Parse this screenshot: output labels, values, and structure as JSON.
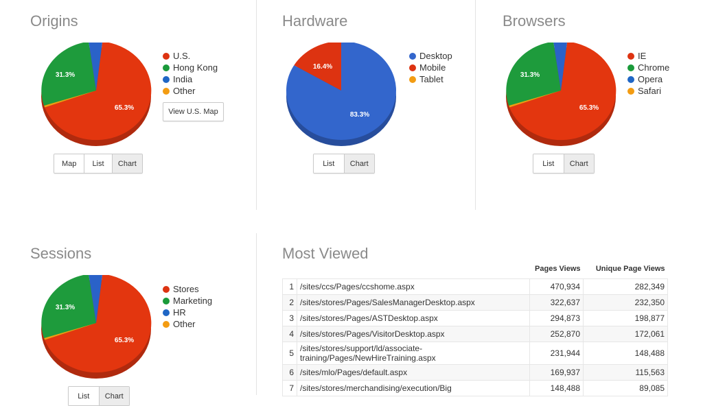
{
  "origins": {
    "title": "Origins",
    "legend": [
      {
        "label": "U.S.",
        "color": "#dd3311"
      },
      {
        "label": "Hong Kong",
        "color": "#1a9a3a"
      },
      {
        "label": "India",
        "color": "#1f66c5"
      },
      {
        "label": "Other",
        "color": "#f39c12"
      }
    ],
    "labels": [
      "31.3%",
      "65.3%"
    ],
    "view_map_label": "View U.S. Map",
    "toggle": [
      "Map",
      "List",
      "Chart"
    ],
    "active": "Chart"
  },
  "hardware": {
    "title": "Hardware",
    "legend": [
      {
        "label": "Desktop",
        "color": "#3366cc"
      },
      {
        "label": "Mobile",
        "color": "#dd3311"
      },
      {
        "label": "Tablet",
        "color": "#f39c12"
      }
    ],
    "labels": [
      "16.4%",
      "83.3%"
    ],
    "toggle": [
      "List",
      "Chart"
    ],
    "active": "Chart"
  },
  "browsers": {
    "title": "Browsers",
    "legend": [
      {
        "label": "IE",
        "color": "#dd3311"
      },
      {
        "label": "Chrome",
        "color": "#1a9a3a"
      },
      {
        "label": "Opera",
        "color": "#1f66c5"
      },
      {
        "label": "Safari",
        "color": "#f39c12"
      }
    ],
    "labels": [
      "31.3%",
      "65.3%"
    ],
    "toggle": [
      "List",
      "Chart"
    ],
    "active": "Chart"
  },
  "sessions": {
    "title": "Sessions",
    "legend": [
      {
        "label": "Stores",
        "color": "#dd3311"
      },
      {
        "label": "Marketing",
        "color": "#1a9a3a"
      },
      {
        "label": "HR",
        "color": "#1f66c5"
      },
      {
        "label": "Other",
        "color": "#f39c12"
      }
    ],
    "labels": [
      "31.3%",
      "65.3%"
    ],
    "toggle": [
      "List",
      "Chart"
    ],
    "active": "Chart"
  },
  "most_viewed": {
    "title": "Most Viewed",
    "columns": [
      "Pages Views",
      "Unique Page Views"
    ],
    "rows": [
      {
        "n": "1",
        "path": "/sites/ccs/Pages/ccshome.aspx",
        "views": "470,934",
        "unique": "282,349"
      },
      {
        "n": "2",
        "path": "/sites/stores/Pages/SalesManagerDesktop.aspx",
        "views": "322,637",
        "unique": "232,350"
      },
      {
        "n": "3",
        "path": "/sites/stores/Pages/ASTDesktop.aspx",
        "views": "294,873",
        "unique": "198,877"
      },
      {
        "n": "4",
        "path": "/sites/stores/Pages/VisitorDesktop.aspx",
        "views": "252,870",
        "unique": "172,061"
      },
      {
        "n": "5",
        "path": "/sites/stores/support/ld/associate-training/Pages/NewHireTraining.aspx",
        "views": "231,944",
        "unique": "148,488"
      },
      {
        "n": "6",
        "path": "/sites/mlo/Pages/default.aspx",
        "views": "169,937",
        "unique": "115,563"
      },
      {
        "n": "7",
        "path": "/sites/stores/merchandising/execution/Big",
        "views": "148,488",
        "unique": "89,085"
      }
    ]
  }
}
